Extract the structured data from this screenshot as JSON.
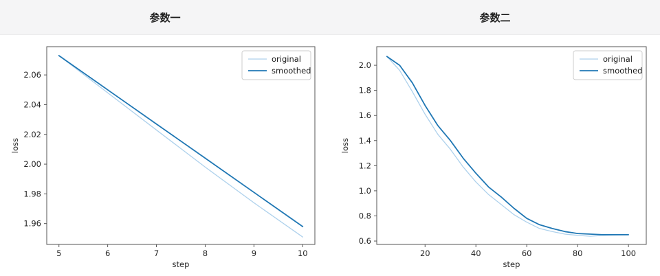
{
  "header": {
    "left_title": "参数一",
    "right_title": "参数二"
  },
  "colors": {
    "original_line": "#aed1ec",
    "smoothed_line": "#1f77b4",
    "spine": "#555555",
    "tick_label": "#262626",
    "legend_border": "#cccccc",
    "legend_bg": "#ffffff",
    "header_bg": "#f5f5f6"
  },
  "chart_data": [
    {
      "type": "line",
      "title": "参数一",
      "xlabel": "step",
      "ylabel": "loss",
      "x": [
        5,
        6,
        7,
        8,
        9,
        10
      ],
      "series": [
        {
          "name": "original",
          "color": "#aed1ec",
          "width": 1.3,
          "values": [
            2.073,
            2.048,
            2.023,
            1.998,
            1.974,
            1.951
          ]
        },
        {
          "name": "smoothed",
          "color": "#1f77b4",
          "width": 1.8,
          "values": [
            2.073,
            2.05,
            2.027,
            2.004,
            1.981,
            1.958
          ]
        }
      ],
      "xlim": [
        4.75,
        10.25
      ],
      "ylim": [
        1.946,
        2.079
      ],
      "xticks": [
        5,
        6,
        7,
        8,
        9,
        10
      ],
      "xtick_labels": [
        "5",
        "6",
        "7",
        "8",
        "9",
        "10"
      ],
      "yticks": [
        1.96,
        1.98,
        2.0,
        2.02,
        2.04,
        2.06
      ],
      "ytick_labels": [
        "1.96",
        "1.98",
        "2.00",
        "2.02",
        "2.04",
        "2.06"
      ],
      "grid": false,
      "legend": {
        "position": "upper right",
        "entries": [
          "original",
          "smoothed"
        ]
      }
    },
    {
      "type": "line",
      "title": "参数二",
      "xlabel": "step",
      "ylabel": "loss",
      "x": [
        5,
        10,
        15,
        20,
        25,
        30,
        35,
        40,
        45,
        50,
        55,
        60,
        65,
        70,
        75,
        80,
        85,
        90,
        95,
        100
      ],
      "series": [
        {
          "name": "original",
          "color": "#aed1ec",
          "width": 1.3,
          "values": [
            2.07,
            1.96,
            1.79,
            1.61,
            1.45,
            1.33,
            1.19,
            1.07,
            0.97,
            0.89,
            0.81,
            0.75,
            0.7,
            0.675,
            0.655,
            0.645,
            0.638,
            0.645,
            0.648,
            0.65
          ]
        },
        {
          "name": "smoothed",
          "color": "#1f77b4",
          "width": 1.8,
          "values": [
            2.07,
            2.0,
            1.86,
            1.68,
            1.52,
            1.4,
            1.26,
            1.14,
            1.03,
            0.95,
            0.86,
            0.78,
            0.73,
            0.7,
            0.675,
            0.66,
            0.655,
            0.65,
            0.65,
            0.65
          ]
        }
      ],
      "xlim": [
        1.0,
        107.0
      ],
      "ylim": [
        0.573,
        2.148
      ],
      "xticks": [
        20,
        40,
        60,
        80,
        100
      ],
      "xtick_labels": [
        "20",
        "40",
        "60",
        "80",
        "100"
      ],
      "yticks": [
        0.6,
        0.8,
        1.0,
        1.2,
        1.4,
        1.6,
        1.8,
        2.0
      ],
      "ytick_labels": [
        "0.6",
        "0.8",
        "1.0",
        "1.2",
        "1.4",
        "1.6",
        "1.8",
        "2.0"
      ],
      "grid": false,
      "legend": {
        "position": "upper right",
        "entries": [
          "original",
          "smoothed"
        ]
      }
    }
  ]
}
